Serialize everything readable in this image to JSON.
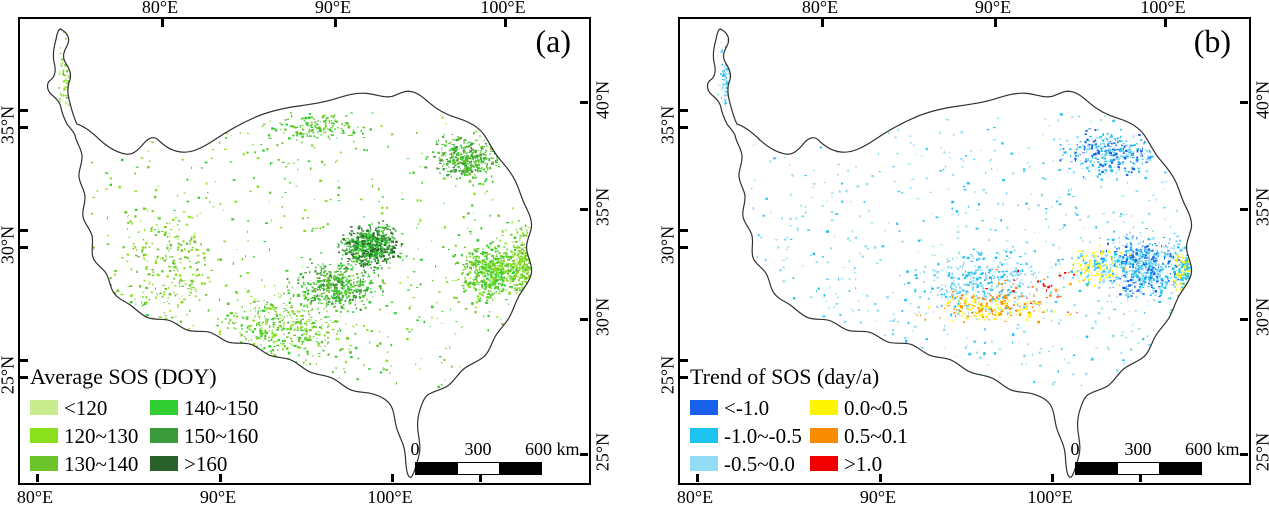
{
  "figure": {
    "panels": [
      {
        "label": "(a)",
        "legend": {
          "title": "Average SOS (DOY)",
          "items": [
            {
              "label": "<120",
              "color": "#C9EC8E"
            },
            {
              "label": "120~130",
              "color": "#8BE01E"
            },
            {
              "label": "130~140",
              "color": "#6CC42A"
            },
            {
              "label": "140~150",
              "color": "#30CE30"
            },
            {
              "label": "150~160",
              "color": "#3B9B3B"
            },
            {
              "label": ">160",
              "color": "#2A612A"
            }
          ]
        }
      },
      {
        "label": "(b)",
        "legend": {
          "title": "Trend of SOS (day/a)",
          "items": [
            {
              "label": "<-1.0",
              "color": "#1661E8"
            },
            {
              "label": "-1.0~-0.5",
              "color": "#1FC3F2"
            },
            {
              "label": "-0.5~0.0",
              "color": "#92DCF4"
            },
            {
              "label": "0.0~0.5",
              "color": "#FFF500"
            },
            {
              "label": "0.5~0.1",
              "color": "#F98C00"
            },
            {
              "label": ">1.0",
              "color": "#F20000"
            }
          ]
        }
      }
    ],
    "axes": {
      "top_labels": [
        "80°E",
        "90°E",
        "100°E"
      ],
      "bottom_labels": [
        "80°E",
        "90°E",
        "100°E"
      ],
      "left_labels": [
        "35°N",
        "30°N",
        "25°N"
      ],
      "right_labels": [
        "40°N",
        "35°N",
        "30°N",
        "25°N"
      ]
    },
    "scalebar": {
      "labels": [
        "0",
        "300",
        "600 km"
      ]
    },
    "map": {
      "outline_color": "#303030",
      "background": "#FFFFFF"
    }
  }
}
